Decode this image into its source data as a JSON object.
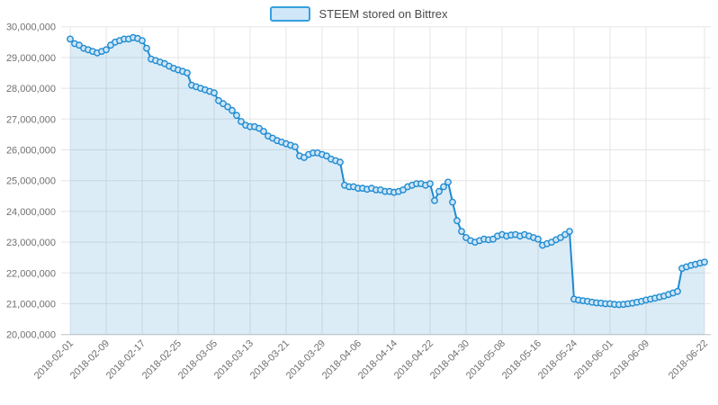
{
  "legend": {
    "label": "STEEM stored on Bittrex"
  },
  "chart_data": {
    "type": "area",
    "title": "",
    "series": [
      {
        "name": "STEEM stored on Bittrex",
        "start_date": "2018-02-01",
        "end_date": "2018-06-22",
        "interval": "daily",
        "values": [
          29600000,
          29450000,
          29400000,
          29300000,
          29250000,
          29200000,
          29150000,
          29200000,
          29250000,
          29400000,
          29500000,
          29550000,
          29600000,
          29600000,
          29650000,
          29620000,
          29550000,
          29300000,
          28950000,
          28900000,
          28850000,
          28800000,
          28720000,
          28650000,
          28600000,
          28550000,
          28500000,
          28100000,
          28050000,
          28000000,
          27950000,
          27900000,
          27850000,
          27600000,
          27500000,
          27400000,
          27280000,
          27120000,
          26920000,
          26800000,
          26750000,
          26750000,
          26700000,
          26600000,
          26450000,
          26380000,
          26300000,
          26250000,
          26200000,
          26150000,
          26100000,
          25800000,
          25750000,
          25850000,
          25900000,
          25900000,
          25850000,
          25800000,
          25700000,
          25650000,
          25600000,
          24850000,
          24800000,
          24800000,
          24750000,
          24750000,
          24720000,
          24750000,
          24700000,
          24700000,
          24650000,
          24650000,
          24620000,
          24650000,
          24700000,
          24800000,
          24850000,
          24900000,
          24900000,
          24850000,
          24900000,
          24350000,
          24650000,
          24800000,
          24950000,
          24300000,
          23700000,
          23350000,
          23150000,
          23050000,
          23000000,
          23050000,
          23100000,
          23080000,
          23100000,
          23200000,
          23250000,
          23200000,
          23230000,
          23250000,
          23200000,
          23250000,
          23200000,
          23150000,
          23100000,
          22900000,
          22950000,
          23000000,
          23080000,
          23150000,
          23250000,
          23350000,
          21150000,
          21120000,
          21100000,
          21080000,
          21050000,
          21030000,
          21020000,
          21000000,
          21000000,
          20980000,
          20970000,
          20980000,
          21000000,
          21020000,
          21050000,
          21080000,
          21120000,
          21150000,
          21180000,
          21220000,
          21250000,
          21300000,
          21350000,
          21400000,
          22150000,
          22200000,
          22250000,
          22280000,
          22320000,
          22350000
        ]
      }
    ],
    "x_axis": {
      "tick_labels": [
        "2018-02-01",
        "2018-02-09",
        "2018-02-17",
        "2018-02-25",
        "2018-03-05",
        "2018-03-13",
        "2018-03-21",
        "2018-03-29",
        "2018-04-06",
        "2018-04-14",
        "2018-04-22",
        "2018-04-30",
        "2018-05-08",
        "2018-05-16",
        "2018-05-24",
        "2018-06-01",
        "2018-06-09",
        "2018-06-22"
      ],
      "tick_day_offsets": [
        0,
        8,
        16,
        24,
        32,
        40,
        48,
        56,
        64,
        72,
        80,
        88,
        96,
        104,
        112,
        120,
        128,
        141
      ],
      "label_rotation_deg": -45
    },
    "y_axis": {
      "min": 20000000,
      "max": 30000000,
      "tick_step": 1000000,
      "tick_labels": [
        "20,000,000",
        "21,000,000",
        "22,000,000",
        "23,000,000",
        "24,000,000",
        "25,000,000",
        "26,000,000",
        "27,000,000",
        "28,000,000",
        "29,000,000",
        "30,000,000"
      ]
    },
    "grid": true,
    "legend_position": "top-center",
    "colors": {
      "line": "#1f8bd0",
      "area_fill": "rgba(31,139,208,0.16)",
      "marker_fill": "#cde5f7",
      "marker_stroke": "#1f8bd0",
      "grid_line": "#e5e5e5",
      "axis_line": "#c8c8c8",
      "tick_text": "#707070",
      "legend_text": "#4a4a4a"
    }
  }
}
